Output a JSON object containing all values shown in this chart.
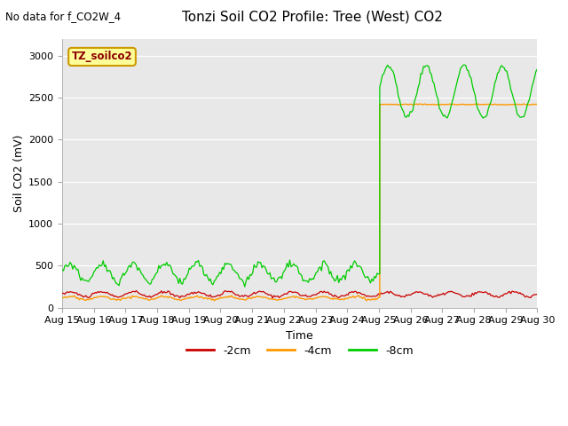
{
  "title": "Tonzi Soil CO2 Profile: Tree (West) CO2",
  "subtitle": "No data for f_CO2W_4",
  "xlabel": "Time",
  "ylabel": "Soil CO2 (mV)",
  "ylim": [
    0,
    3200
  ],
  "yticks": [
    0,
    500,
    1000,
    1500,
    2000,
    2500,
    3000
  ],
  "date_start": 15,
  "date_end": 30,
  "colors": {
    "2cm": "#cc0000",
    "4cm": "#ff9900",
    "8cm": "#00cc00"
  },
  "legend_label": "TZ_soilco2",
  "legend_labels": [
    "-2cm",
    "-4cm",
    "-8cm"
  ],
  "axes_bg": "#e8e8e8",
  "grid_color": "white",
  "transition_day": 10,
  "orange_high": 2420,
  "green_high_base": 2570,
  "green_high_amp": 310,
  "green_period": 1.2
}
